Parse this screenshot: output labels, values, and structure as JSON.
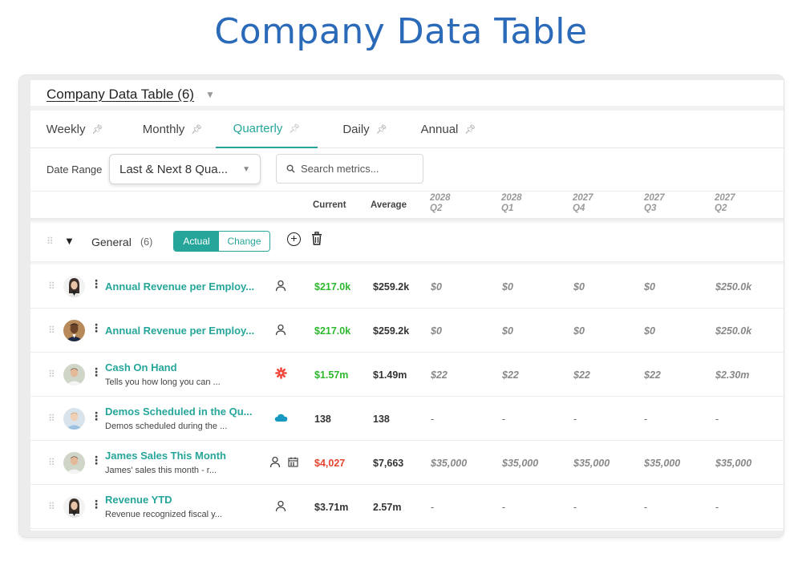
{
  "page_title": "Company Data Table",
  "table": {
    "title": "Company Data Table (6)"
  },
  "tabs": [
    {
      "label": "Weekly",
      "active": false
    },
    {
      "label": "Monthly",
      "active": false
    },
    {
      "label": "Quarterly",
      "active": true
    },
    {
      "label": "Daily",
      "active": false
    },
    {
      "label": "Annual",
      "active": false
    }
  ],
  "filters": {
    "date_range_label": "Date Range",
    "date_range_value": "Last & Next 8 Qua...",
    "search_placeholder": "Search metrics..."
  },
  "columns": {
    "current": "Current",
    "average": "Average",
    "periods": [
      {
        "year": "2028",
        "quarter": "Q2"
      },
      {
        "year": "2028",
        "quarter": "Q1"
      },
      {
        "year": "2027",
        "quarter": "Q4"
      },
      {
        "year": "2027",
        "quarter": "Q3"
      },
      {
        "year": "2027",
        "quarter": "Q2"
      }
    ]
  },
  "group": {
    "name": "General",
    "count": "(6)",
    "actual_label": "Actual",
    "change_label": "Change"
  },
  "colors": {
    "accent": "#26a69a",
    "title_blue": "#2a6ab8",
    "positive": "#2eb82e",
    "negative": "#e5452f"
  },
  "rows": [
    {
      "title": "Annual Revenue per Employ...",
      "description": "",
      "icons": [
        "person-icon"
      ],
      "current": "$217.0k",
      "current_status": "positive",
      "average": "$259.2k",
      "periods": [
        "$0",
        "$0",
        "$0",
        "$0",
        "$250.0k"
      ]
    },
    {
      "title": "Annual Revenue per Employ...",
      "description": "",
      "icons": [
        "person-icon"
      ],
      "current": "$217.0k",
      "current_status": "positive",
      "average": "$259.2k",
      "periods": [
        "$0",
        "$0",
        "$0",
        "$0",
        "$250.0k"
      ]
    },
    {
      "title": "Cash On Hand",
      "description": "Tells you how long you can ...",
      "icons": [
        "asterisk-integration-icon"
      ],
      "current": "$1.57m",
      "current_status": "positive",
      "average": "$1.49m",
      "periods": [
        "$22",
        "$22",
        "$22",
        "$22",
        "$2.30m"
      ]
    },
    {
      "title": "Demos Scheduled in the Qu...",
      "description": "Demos scheduled during the ...",
      "icons": [
        "cloud-integration-icon"
      ],
      "current": "138",
      "current_status": "neutral",
      "average": "138",
      "periods": [
        "-",
        "-",
        "-",
        "-",
        "-"
      ]
    },
    {
      "title": "James Sales This Month",
      "description": "James' sales this month - r...",
      "icons": [
        "person-icon",
        "calendar-icon"
      ],
      "current": "$4,027",
      "current_status": "negative",
      "average": "$7,663",
      "periods": [
        "$35,000",
        "$35,000",
        "$35,000",
        "$35,000",
        "$35,000"
      ]
    },
    {
      "title": "Revenue YTD",
      "description": "Revenue recognized fiscal y...",
      "icons": [
        "person-icon"
      ],
      "current": "$3.71m",
      "current_status": "neutral",
      "average": "2.57m",
      "periods": [
        "-",
        "-",
        "-",
        "-",
        "-"
      ]
    }
  ]
}
